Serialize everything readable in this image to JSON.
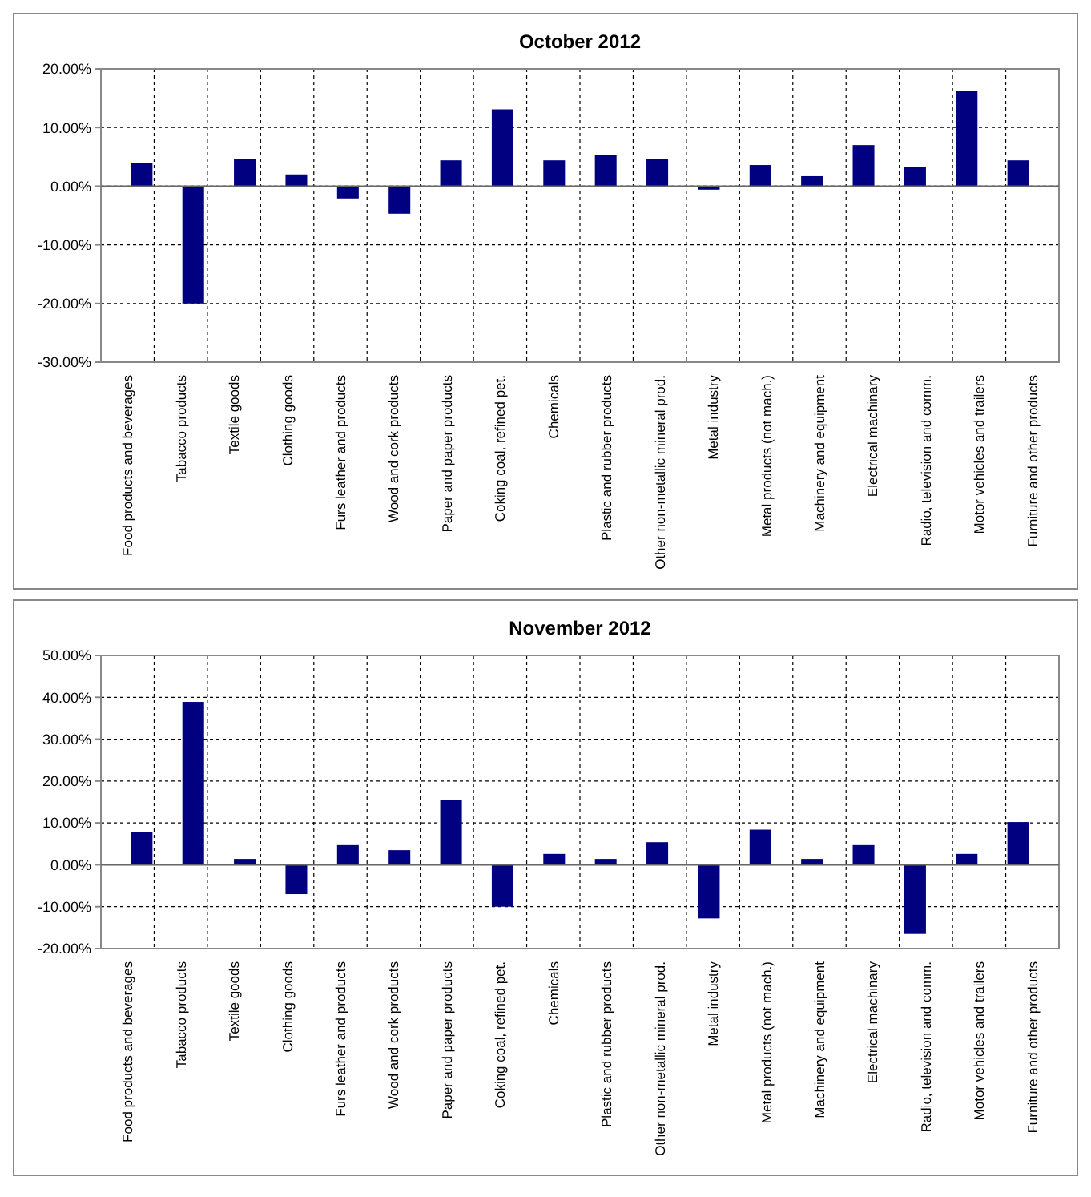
{
  "chart_data": [
    {
      "type": "bar",
      "title": "October 2012",
      "categories": [
        "Food products and beverages",
        "Tabacco products",
        "Textile goods",
        "Clothing goods",
        "Furs leather and products",
        "Wood and cork products",
        "Paper and paper products",
        "Coking coal, refined pet.",
        "Chemicals",
        "Plastic and rubber products",
        "Other non-metallic mineral prod.",
        "Metal industry",
        "Metal products (not mach.)",
        "Machinery and equipment",
        "Electrical machinary",
        "Radio, television and comm.",
        "Motor vehicles and trailers",
        "Furniture and other products"
      ],
      "values": [
        3.9,
        -20,
        4.6,
        2.0,
        -2.1,
        -4.7,
        4.4,
        13.1,
        4.4,
        5.3,
        4.7,
        -0.6,
        3.6,
        1.7,
        7.0,
        3.3,
        16.3,
        4.4
      ],
      "color": "#000080",
      "ylim": [
        -30,
        20
      ],
      "yticks": [
        {
          "value": -30,
          "label": "-30.00%"
        },
        {
          "value": -20,
          "label": "-20.00%"
        },
        {
          "value": -10,
          "label": "-10.00%"
        },
        {
          "value": 0,
          "label": "0.00%"
        },
        {
          "value": 10,
          "label": "10.00%"
        },
        {
          "value": 20,
          "label": "20.00%"
        }
      ],
      "grid": true
    },
    {
      "type": "bar",
      "title": "November 2012",
      "categories": [
        "Food products and beverages",
        "Tabacco products",
        "Textile goods",
        "Clothing goods",
        "Furs leather and products",
        "Wood and cork products",
        "Paper and paper products",
        "Coking coal, refined pet.",
        "Chemicals",
        "Plastic and rubber products",
        "Other non-metallic mineral prod.",
        "Metal industry",
        "Metal products (not mach.)",
        "Machinery and equipment",
        "Electrical machinary",
        "Radio, television and comm.",
        "Motor vehicles and trailers",
        "Furniture and other products"
      ],
      "values": [
        7.9,
        38.9,
        1.4,
        -7.0,
        4.7,
        3.5,
        15.4,
        -10.0,
        2.6,
        1.4,
        5.4,
        -12.8,
        8.4,
        1.4,
        4.7,
        -16.5,
        2.6,
        10.2
      ],
      "color": "#000080",
      "ylim": [
        -20,
        50
      ],
      "yticks": [
        {
          "value": -20,
          "label": "-20.00%"
        },
        {
          "value": -10,
          "label": "-10.00%"
        },
        {
          "value": 0,
          "label": "0.00%"
        },
        {
          "value": 10,
          "label": "10.00%"
        },
        {
          "value": 20,
          "label": "20.00%"
        },
        {
          "value": 30,
          "label": "30.00%"
        },
        {
          "value": 40,
          "label": "40.00%"
        },
        {
          "value": 50,
          "label": "50.00%"
        }
      ],
      "grid": true
    }
  ]
}
